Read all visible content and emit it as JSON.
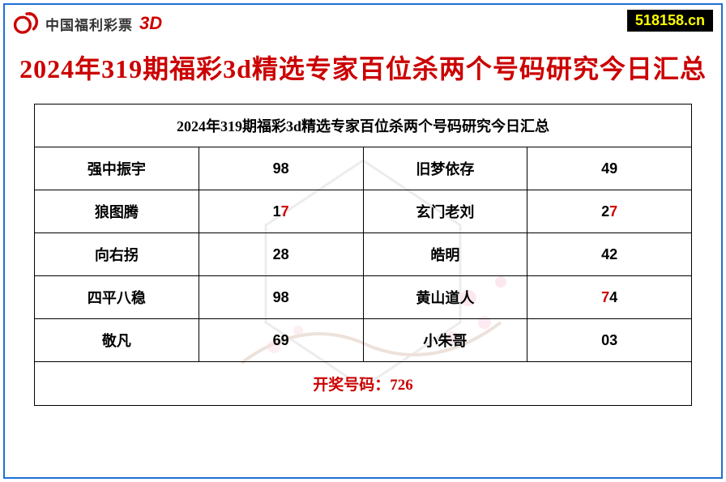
{
  "header": {
    "logo_text": "中国福利彩票",
    "logo_3d": "3D",
    "url_badge": "518158.cn"
  },
  "title": "2024年319期福彩3d精选专家百位杀两个号码研究今日汇总",
  "table": {
    "caption": "2024年319期福彩3d精选专家百位杀两个号码研究今日汇总",
    "rows": [
      {
        "name1": "强中振宇",
        "d1a": "9",
        "d1b": "8",
        "name2": "旧梦依存",
        "d2a": "4",
        "d2b": "9"
      },
      {
        "name1": "狼图腾",
        "d1a": "1",
        "d1b": "7",
        "name2": "玄门老刘",
        "d2a": "2",
        "d2b": "7"
      },
      {
        "name1": "向右拐",
        "d1a": "2",
        "d1b": "8",
        "name2": "皓明",
        "d2a": "4",
        "d2b": "2"
      },
      {
        "name1": "四平八稳",
        "d1a": "9",
        "d1b": "8",
        "name2": "黄山道人",
        "d2a": "7",
        "d2b": "4"
      },
      {
        "name1": "敬凡",
        "d1a": "6",
        "d1b": "9",
        "name2": "小朱哥",
        "d2a": "0",
        "d2b": "3"
      }
    ],
    "result_label": "开奖号码：",
    "result_value": "726",
    "winning_digit": "7"
  },
  "colors": {
    "frame_border": "#1e6fd9",
    "title_red": "#cc0000",
    "number_red": "#cc0000",
    "number_black": "#000000",
    "badge_bg": "#000000",
    "badge_text": "#ffff00"
  }
}
